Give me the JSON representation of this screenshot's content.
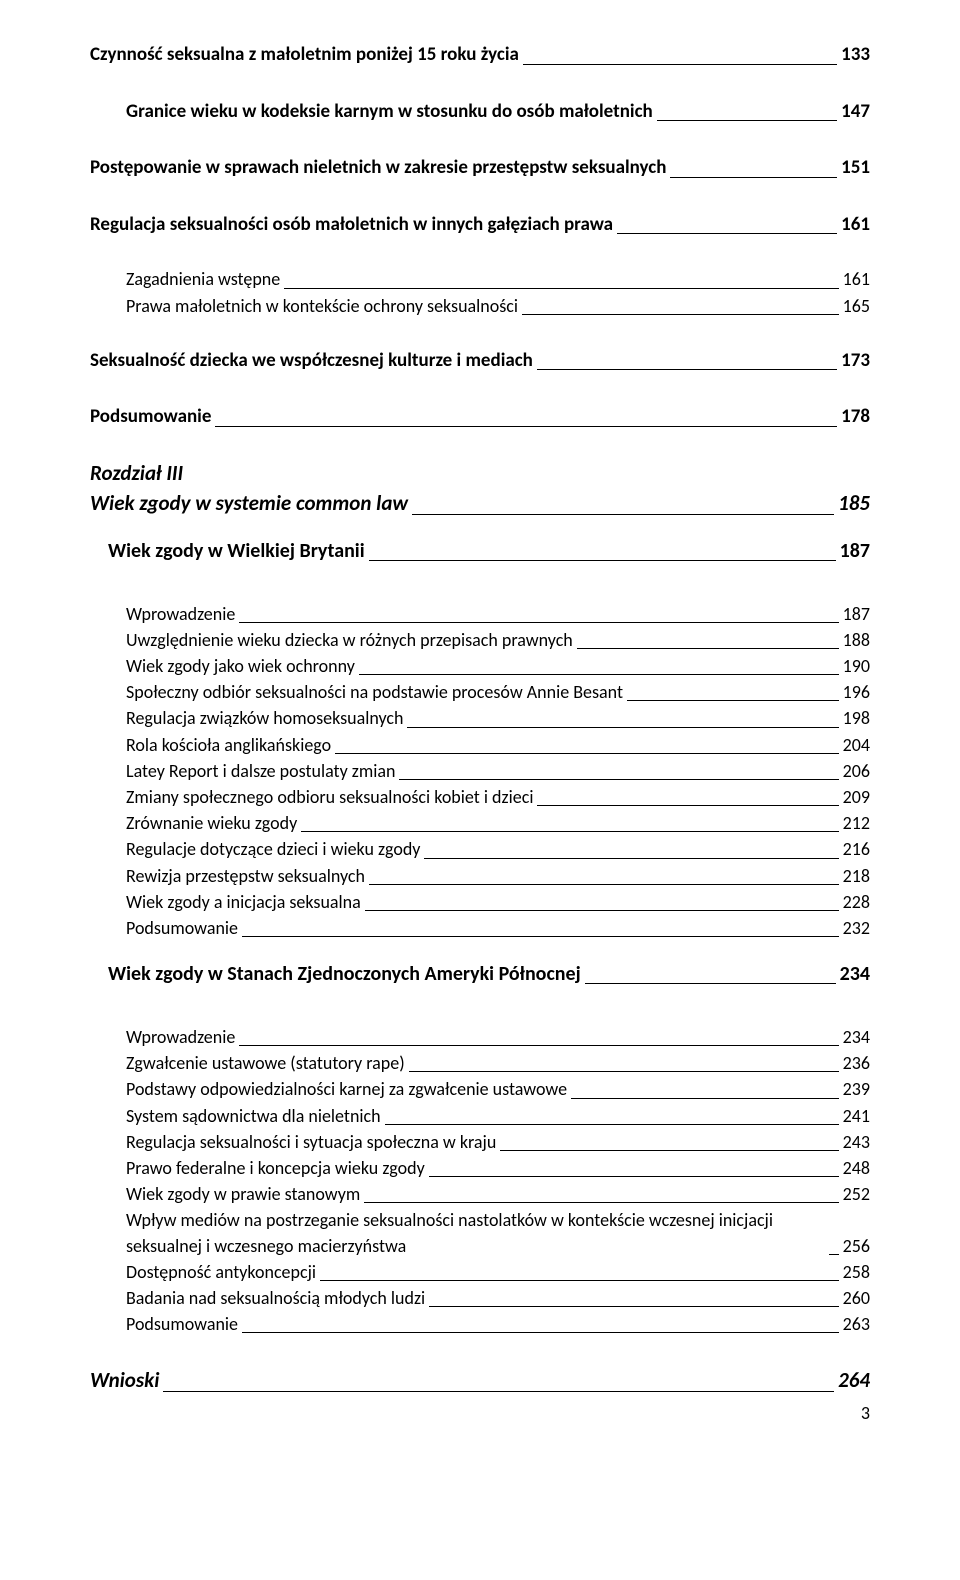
{
  "page_number": "3",
  "styling": {
    "background_color": "#ffffff",
    "text_color": "#000000",
    "leader_color": "#000000",
    "font_family": "Calibri, 'Segoe UI', Arial, sans-serif",
    "h1_fontsize": 19,
    "h2_fontsize": 19,
    "h3_fontsize": 18,
    "chapter_fontsize": 21,
    "section_fontsize": 20
  },
  "entries": [
    {
      "type": "row",
      "level": "h1",
      "label": "Czynność seksualna z małoletnim poniżej 15 roku życia",
      "page": "133"
    },
    {
      "type": "spacer",
      "size": "lg"
    },
    {
      "type": "row",
      "level": "h2",
      "label": "Granice wieku w kodeksie karnym w stosunku do osób małoletnich",
      "page": "147"
    },
    {
      "type": "spacer",
      "size": "lg"
    },
    {
      "type": "row",
      "level": "h1",
      "label": "Postępowanie w sprawach nieletnich w zakresie przestępstw seksualnych",
      "page": "151"
    },
    {
      "type": "spacer",
      "size": "lg"
    },
    {
      "type": "row",
      "level": "h1",
      "label": "Regulacja seksualności osób małoletnich w innych gałęziach prawa",
      "page": "161"
    },
    {
      "type": "spacer",
      "size": "lg"
    },
    {
      "type": "row",
      "level": "h3",
      "label": "Zagadnienia wstępne",
      "page": "161"
    },
    {
      "type": "row",
      "level": "h3",
      "label": "Prawa małoletnich w kontekście ochrony seksualności",
      "page": "165"
    },
    {
      "type": "spacer",
      "size": "lg"
    },
    {
      "type": "row",
      "level": "h1",
      "label": "Seksualność dziecka we współczesnej kulturze i mediach",
      "page": "173"
    },
    {
      "type": "spacer",
      "size": "lg"
    },
    {
      "type": "row",
      "level": "h1",
      "label": "Podsumowanie",
      "page": "178"
    },
    {
      "type": "spacer",
      "size": "lg"
    },
    {
      "type": "chapter_heading_nolead",
      "label": "Rozdział III"
    },
    {
      "type": "row",
      "level": "chapter",
      "label": "Wiek zgody w systemie common law",
      "page": "185"
    },
    {
      "type": "spacer",
      "size": "md"
    },
    {
      "type": "row",
      "level": "section",
      "label": "Wiek zgody w Wielkiej Brytanii",
      "page": "187"
    },
    {
      "type": "spacer",
      "size": "xl"
    },
    {
      "type": "row",
      "level": "h3",
      "label": "Wprowadzenie",
      "page": "187"
    },
    {
      "type": "row",
      "level": "h3",
      "label": "Uwzględnienie wieku dziecka w różnych przepisach prawnych",
      "page": "188"
    },
    {
      "type": "row",
      "level": "h3",
      "label": "Wiek zgody jako wiek ochronny",
      "page": "190"
    },
    {
      "type": "row",
      "level": "h3",
      "label": "Społeczny odbiór seksualności na podstawie procesów Annie Besant",
      "page": "196"
    },
    {
      "type": "row",
      "level": "h3",
      "label": "Regulacja związków homoseksualnych",
      "page": "198"
    },
    {
      "type": "row",
      "level": "h3",
      "label": "Rola kościoła anglikańskiego",
      "page": "204"
    },
    {
      "type": "row",
      "level": "h3",
      "label": "Latey Report i dalsze postulaty zmian",
      "page": "206"
    },
    {
      "type": "row",
      "level": "h3",
      "label": "Zmiany społecznego odbioru seksualności kobiet i dzieci",
      "page": "209"
    },
    {
      "type": "row",
      "level": "h3",
      "label": "Zrównanie wieku zgody",
      "page": "212"
    },
    {
      "type": "row",
      "level": "h3",
      "label": "Regulacje dotyczące dzieci i wieku zgody",
      "page": "216"
    },
    {
      "type": "row",
      "level": "h3",
      "label": "Rewizja przestępstw seksualnych",
      "page": "218"
    },
    {
      "type": "row",
      "level": "h3",
      "label": "Wiek zgody a inicjacja seksualna",
      "page": "228"
    },
    {
      "type": "row",
      "level": "h3",
      "label": "Podsumowanie",
      "page": "232"
    },
    {
      "type": "spacer",
      "size": "md"
    },
    {
      "type": "row",
      "level": "section",
      "label": "Wiek zgody w Stanach Zjednoczonych Ameryki Północnej",
      "page": "234"
    },
    {
      "type": "spacer",
      "size": "xl"
    },
    {
      "type": "row",
      "level": "h3",
      "label": "Wprowadzenie",
      "page": "234"
    },
    {
      "type": "row",
      "level": "h3",
      "label": "Zgwałcenie ustawowe (statutory rape)",
      "page": "236"
    },
    {
      "type": "row",
      "level": "h3",
      "label": "Podstawy odpowiedzialności karnej za zgwałcenie ustawowe",
      "page": "239"
    },
    {
      "type": "row",
      "level": "h3",
      "label": "System sądownictwa dla nieletnich",
      "page": "241"
    },
    {
      "type": "row",
      "level": "h3",
      "label": "Regulacja seksualności i sytuacja społeczna w kraju",
      "page": "243"
    },
    {
      "type": "row",
      "level": "h3",
      "label": "Prawo federalne i koncepcja wieku zgody",
      "page": "248"
    },
    {
      "type": "row",
      "level": "h3",
      "label": "Wiek zgody w prawie stanowym",
      "page": "252"
    },
    {
      "type": "row",
      "level": "h3",
      "label": "Wpływ mediów na postrzeganie seksualności nastolatków w kontekście wczesnej inicjacji seksualnej i wczesnego macierzyństwa",
      "page": "256"
    },
    {
      "type": "row",
      "level": "h3",
      "label": "Dostępność antykoncepcji",
      "page": "258"
    },
    {
      "type": "row",
      "level": "h3",
      "label": "Badania nad seksualnością młodych ludzi",
      "page": "260"
    },
    {
      "type": "row",
      "level": "h3",
      "label": "Podsumowanie",
      "page": "263"
    },
    {
      "type": "spacer",
      "size": "lg"
    },
    {
      "type": "row",
      "level": "chapter",
      "label": "Wnioski",
      "page": "264"
    }
  ]
}
